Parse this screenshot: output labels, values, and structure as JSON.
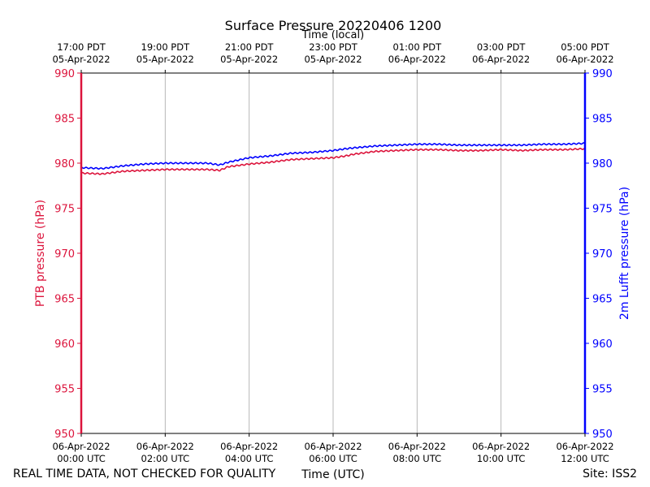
{
  "chart_data": {
    "type": "line",
    "title": "Surface Pressure 20220406 1200",
    "top_axis_label": "Time (local)",
    "xlabel": "Time (UTC)",
    "ylabel_left": "PTB pressure (hPa)",
    "ylabel_right": "2m Lufft pressure (hPa)",
    "left_axis_color": "#dc143c",
    "right_axis_color": "#0000ff",
    "grid_color": "#b0b0b0",
    "ylim": [
      950,
      990
    ],
    "yticks": [
      "950",
      "955",
      "960",
      "965",
      "970",
      "975",
      "980",
      "985",
      "990"
    ],
    "xlim_hours": [
      0,
      12
    ],
    "x_ticks_utc": [
      {
        "hour": 0,
        "line1": "06-Apr-2022",
        "line2": "00:00 UTC"
      },
      {
        "hour": 2,
        "line1": "06-Apr-2022",
        "line2": "02:00 UTC"
      },
      {
        "hour": 4,
        "line1": "06-Apr-2022",
        "line2": "04:00 UTC"
      },
      {
        "hour": 6,
        "line1": "06-Apr-2022",
        "line2": "06:00 UTC"
      },
      {
        "hour": 8,
        "line1": "06-Apr-2022",
        "line2": "08:00 UTC"
      },
      {
        "hour": 10,
        "line1": "06-Apr-2022",
        "line2": "10:00 UTC"
      },
      {
        "hour": 12,
        "line1": "06-Apr-2022",
        "line2": "12:00 UTC"
      }
    ],
    "x_ticks_local": [
      {
        "hour": 0,
        "line1": "17:00 PDT",
        "line2": "05-Apr-2022"
      },
      {
        "hour": 2,
        "line1": "19:00 PDT",
        "line2": "05-Apr-2022"
      },
      {
        "hour": 4,
        "line1": "21:00 PDT",
        "line2": "05-Apr-2022"
      },
      {
        "hour": 6,
        "line1": "23:00 PDT",
        "line2": "05-Apr-2022"
      },
      {
        "hour": 8,
        "line1": "01:00 PDT",
        "line2": "06-Apr-2022"
      },
      {
        "hour": 10,
        "line1": "03:00 PDT",
        "line2": "06-Apr-2022"
      },
      {
        "hour": 12,
        "line1": "05:00 PDT",
        "line2": "06-Apr-2022"
      }
    ],
    "series": [
      {
        "name": "PTB pressure",
        "color": "#dc143c",
        "axis": "left",
        "x": [
          0,
          0.5,
          1,
          1.5,
          2,
          2.5,
          3,
          3.3,
          3.5,
          4,
          4.5,
          5,
          5.5,
          6,
          6.3,
          6.5,
          7,
          7.5,
          8,
          8.5,
          9,
          9.5,
          10,
          10.5,
          11,
          11.5,
          12
        ],
        "y": [
          978.9,
          978.8,
          979.1,
          979.2,
          979.3,
          979.3,
          979.3,
          979.2,
          979.6,
          979.9,
          980.1,
          980.4,
          980.5,
          980.6,
          980.8,
          981.0,
          981.3,
          981.4,
          981.5,
          981.5,
          981.4,
          981.4,
          981.5,
          981.4,
          981.5,
          981.5,
          981.6
        ]
      },
      {
        "name": "2m Lufft pressure",
        "color": "#0000ff",
        "axis": "right",
        "x": [
          0,
          0.5,
          1,
          1.5,
          2,
          2.5,
          3,
          3.3,
          3.5,
          4,
          4.5,
          5,
          5.5,
          6,
          6.3,
          6.5,
          7,
          7.5,
          8,
          8.5,
          9,
          9.5,
          10,
          10.5,
          11,
          11.5,
          12
        ],
        "y": [
          979.5,
          979.4,
          979.7,
          979.9,
          980.0,
          980.0,
          980.0,
          979.8,
          980.1,
          980.6,
          980.8,
          981.1,
          981.2,
          981.4,
          981.6,
          981.7,
          981.9,
          982.0,
          982.1,
          982.1,
          982.0,
          982.0,
          982.0,
          982.0,
          982.1,
          982.1,
          982.2
        ]
      }
    ]
  },
  "footer": {
    "disclaimer": "REAL TIME DATA, NOT CHECKED FOR QUALITY",
    "site": "Site: ISS2"
  }
}
